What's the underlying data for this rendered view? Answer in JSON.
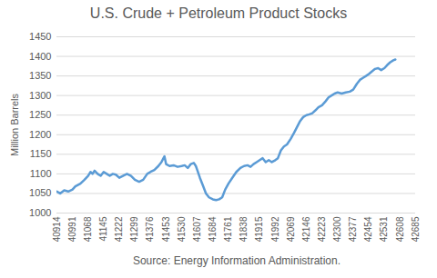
{
  "chart_data": {
    "type": "line",
    "title": "U.S. Crude + Petroleum Product Stocks",
    "y_label": "Million Barrels",
    "caption": "Source: Energy Information Administration.",
    "x": [
      40914,
      40930,
      40950,
      40970,
      40991,
      41005,
      41030,
      41050,
      41068,
      41080,
      41090,
      41100,
      41115,
      41130,
      41145,
      41160,
      41175,
      41190,
      41205,
      41222,
      41240,
      41260,
      41280,
      41299,
      41320,
      41340,
      41360,
      41376,
      41395,
      41415,
      41430,
      41440,
      41445,
      41453,
      41470,
      41490,
      41510,
      41530,
      41545,
      41560,
      41575,
      41590,
      41600,
      41607,
      41620,
      41635,
      41650,
      41665,
      41684,
      41700,
      41715,
      41730,
      41745,
      41761,
      41780,
      41800,
      41820,
      41838,
      41855,
      41870,
      41885,
      41900,
      41915,
      41930,
      41945,
      41960,
      41975,
      41992,
      42005,
      42020,
      42035,
      42050,
      42069,
      42085,
      42100,
      42115,
      42130,
      42146,
      42160,
      42175,
      42190,
      42205,
      42223,
      42240,
      42255,
      42270,
      42285,
      42300,
      42320,
      42340,
      42360,
      42377,
      42395,
      42410,
      42425,
      42440,
      42454,
      42470,
      42485,
      42500,
      42515,
      42531,
      42545,
      42560,
      42575,
      42585
    ],
    "values": [
      1055,
      1050,
      1058,
      1055,
      1060,
      1068,
      1075,
      1085,
      1095,
      1105,
      1100,
      1108,
      1100,
      1095,
      1105,
      1100,
      1095,
      1100,
      1098,
      1090,
      1095,
      1100,
      1095,
      1085,
      1080,
      1085,
      1100,
      1105,
      1110,
      1120,
      1130,
      1140,
      1145,
      1125,
      1120,
      1122,
      1118,
      1120,
      1122,
      1115,
      1125,
      1128,
      1120,
      1110,
      1090,
      1070,
      1050,
      1040,
      1035,
      1033,
      1035,
      1040,
      1060,
      1075,
      1090,
      1105,
      1115,
      1120,
      1122,
      1118,
      1125,
      1130,
      1135,
      1140,
      1130,
      1135,
      1130,
      1135,
      1140,
      1160,
      1170,
      1175,
      1190,
      1205,
      1220,
      1235,
      1245,
      1250,
      1252,
      1255,
      1262,
      1270,
      1275,
      1285,
      1295,
      1300,
      1305,
      1308,
      1305,
      1308,
      1310,
      1315,
      1330,
      1340,
      1345,
      1350,
      1355,
      1362,
      1368,
      1370,
      1365,
      1370,
      1378,
      1385,
      1390,
      1392
    ],
    "color": "#5b9bd5",
    "xlim": [
      40914,
      42685
    ],
    "xticks": [
      40914,
      40991,
      41068,
      41145,
      41222,
      41299,
      41376,
      41453,
      41530,
      41607,
      41684,
      41761,
      41838,
      41915,
      41992,
      42069,
      42146,
      42223,
      42300,
      42377,
      42454,
      42531,
      42608,
      42685
    ],
    "ylim": [
      1000,
      1450
    ],
    "yticks": [
      1000,
      1050,
      1100,
      1150,
      1200,
      1250,
      1300,
      1350,
      1400,
      1450
    ],
    "grid": true
  }
}
